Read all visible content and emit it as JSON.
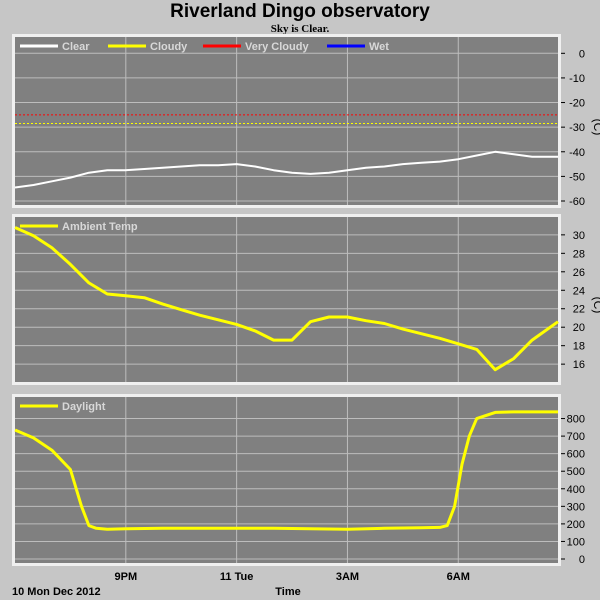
{
  "title": "Riverland Dingo observatory",
  "subtitle": "Sky is Clear.",
  "colors": {
    "plot_bg": "#808080",
    "grid": "#bdbdbd",
    "frame": "#f0f0f0",
    "page_bg": "#c6c6c6"
  },
  "x_axis": {
    "label": "Time",
    "date_label": "10 Mon Dec 2012",
    "ticks": [
      "9PM",
      "11 Tue",
      "3AM",
      "6AM"
    ],
    "tick_hours": [
      3,
      6,
      9,
      12
    ],
    "range_hours": [
      0,
      14.7
    ]
  },
  "chart_data": [
    {
      "type": "line",
      "title": "",
      "ylabel": "(C)",
      "ylim": [
        -60,
        5
      ],
      "yticks": [
        0,
        -10,
        -20,
        -30,
        -40,
        -50,
        -60
      ],
      "grid": true,
      "legend": [
        {
          "name": "Clear",
          "color": "#ffffff"
        },
        {
          "name": "Cloudy",
          "color": "#ffff00"
        },
        {
          "name": "Very Cloudy",
          "color": "#ff0000"
        },
        {
          "name": "Wet",
          "color": "#0000ff"
        }
      ],
      "thresholds": [
        {
          "name": "Very Cloudy",
          "value": -25,
          "color": "#ff0000"
        },
        {
          "name": "Cloudy",
          "value": -28.5,
          "color": "#ffff00"
        }
      ],
      "series": [
        {
          "name": "Clear",
          "color": "#ffffff",
          "x": [
            0,
            0.5,
            1,
            1.5,
            2,
            2.5,
            3,
            3.5,
            4,
            4.5,
            5,
            5.5,
            6,
            6.5,
            7,
            7.5,
            8,
            8.5,
            9,
            9.5,
            10,
            10.5,
            11,
            11.5,
            12,
            12.5,
            13,
            13.5,
            14,
            14.7
          ],
          "values": [
            -54.5,
            -53.5,
            -52,
            -50.5,
            -48.5,
            -47.5,
            -47.5,
            -47,
            -46.5,
            -46,
            -45.5,
            -45.5,
            -45,
            -46,
            -47.5,
            -48.5,
            -49,
            -48.5,
            -47.5,
            -46.5,
            -46,
            -45,
            -44.5,
            -44,
            -43,
            -41.5,
            -40,
            -41,
            -42,
            -42
          ]
        }
      ]
    },
    {
      "type": "line",
      "title": "",
      "ylabel": "(C)",
      "ylim": [
        14.5,
        31.5
      ],
      "yticks": [
        16,
        18,
        20,
        22,
        24,
        26,
        28,
        30
      ],
      "grid": true,
      "legend": [
        {
          "name": "Ambient Temp",
          "color": "#ffff00"
        }
      ],
      "series": [
        {
          "name": "Ambient Temp",
          "color": "#ffff00",
          "x": [
            0,
            0.5,
            1,
            1.5,
            2,
            2.5,
            3,
            3.5,
            4,
            4.5,
            5,
            5.5,
            6,
            6.5,
            7,
            7.5,
            8,
            8.5,
            9,
            9.5,
            10,
            10.5,
            11,
            11.5,
            12,
            12.5,
            13,
            13.5,
            14,
            14.7
          ],
          "values": [
            30.8,
            29.9,
            28.6,
            26.8,
            24.8,
            23.6,
            23.4,
            23.2,
            22.5,
            21.9,
            21.3,
            20.8,
            20.3,
            19.6,
            18.6,
            18.6,
            20.6,
            21.1,
            21.1,
            20.7,
            20.4,
            19.8,
            19.3,
            18.8,
            18.2,
            17.6,
            15.4,
            16.6,
            18.6,
            20.6
          ]
        }
      ]
    },
    {
      "type": "line",
      "title": "",
      "ylabel": "",
      "ylim": [
        0,
        900
      ],
      "yticks": [
        0,
        100,
        200,
        300,
        400,
        500,
        600,
        700,
        800
      ],
      "grid": true,
      "legend": [
        {
          "name": "Daylight",
          "color": "#ffff00"
        }
      ],
      "series": [
        {
          "name": "Daylight",
          "color": "#ffff00",
          "x": [
            0,
            0.5,
            1,
            1.5,
            1.8,
            2,
            2.2,
            2.5,
            3,
            4,
            5,
            6,
            7,
            8,
            9,
            10,
            11,
            11.5,
            11.7,
            11.9,
            12.1,
            12.3,
            12.5,
            13,
            13.5,
            14,
            14.7
          ],
          "values": [
            735,
            690,
            620,
            510,
            300,
            190,
            175,
            170,
            172,
            175,
            175,
            175,
            175,
            172,
            170,
            175,
            178,
            180,
            190,
            300,
            540,
            700,
            800,
            835,
            838,
            838,
            838
          ]
        }
      ]
    }
  ]
}
